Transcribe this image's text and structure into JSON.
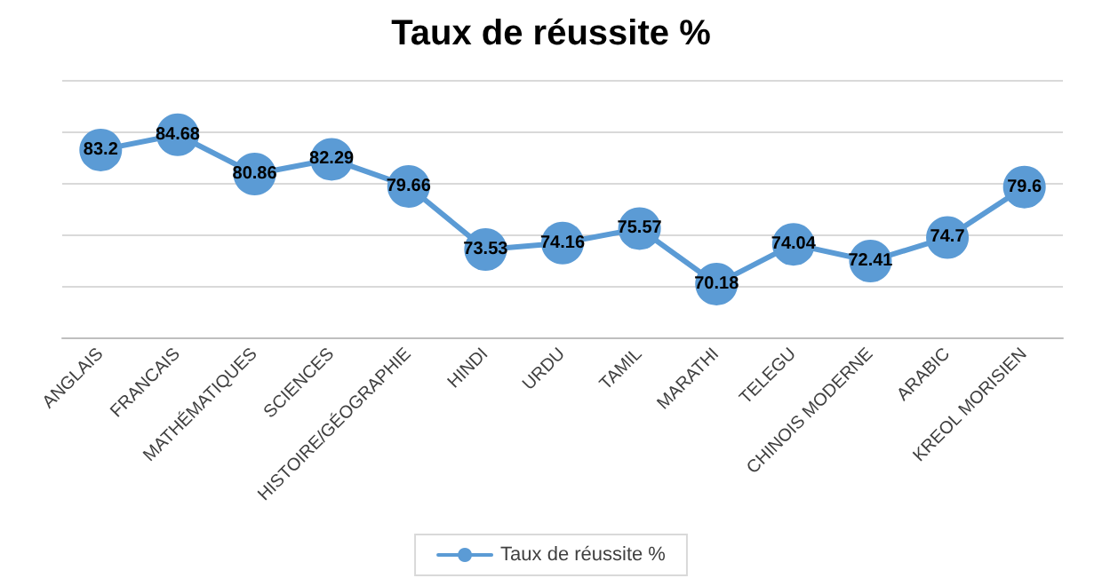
{
  "chart_data": {
    "type": "line",
    "title": "Taux de réussite %",
    "categories": [
      "ANGLAIS",
      "FRANCAIS",
      "MATHÉMATIQUES",
      "SCIENCES",
      "HISTOIRE/GÉOGRAPHIE",
      "HINDI",
      "URDU",
      "TAMIL",
      "MARATHI",
      "TELEGU",
      "CHINOIS MODERNE",
      "ARABIC",
      "KREOL MORISIEN"
    ],
    "series": [
      {
        "name": "Taux de réussite %",
        "color": "#5b9bd5",
        "values": [
          83.2,
          84.68,
          80.86,
          82.29,
          79.66,
          73.53,
          74.16,
          75.57,
          70.18,
          74.04,
          72.41,
          74.7,
          79.6
        ]
      }
    ],
    "ylim": [
      65,
      90
    ],
    "yticks": [
      {
        "value": 65,
        "label": null
      },
      {
        "value": 70,
        "label": null
      },
      {
        "value": 75,
        "label": null
      },
      {
        "value": 80,
        "label": null
      },
      {
        "value": 85,
        "label": null
      },
      {
        "value": 90,
        "label": null
      }
    ],
    "tick_labels": "x",
    "grid": "y",
    "legend": "bottom",
    "marker": "circle",
    "line_style": "solid",
    "data_labels": true
  }
}
